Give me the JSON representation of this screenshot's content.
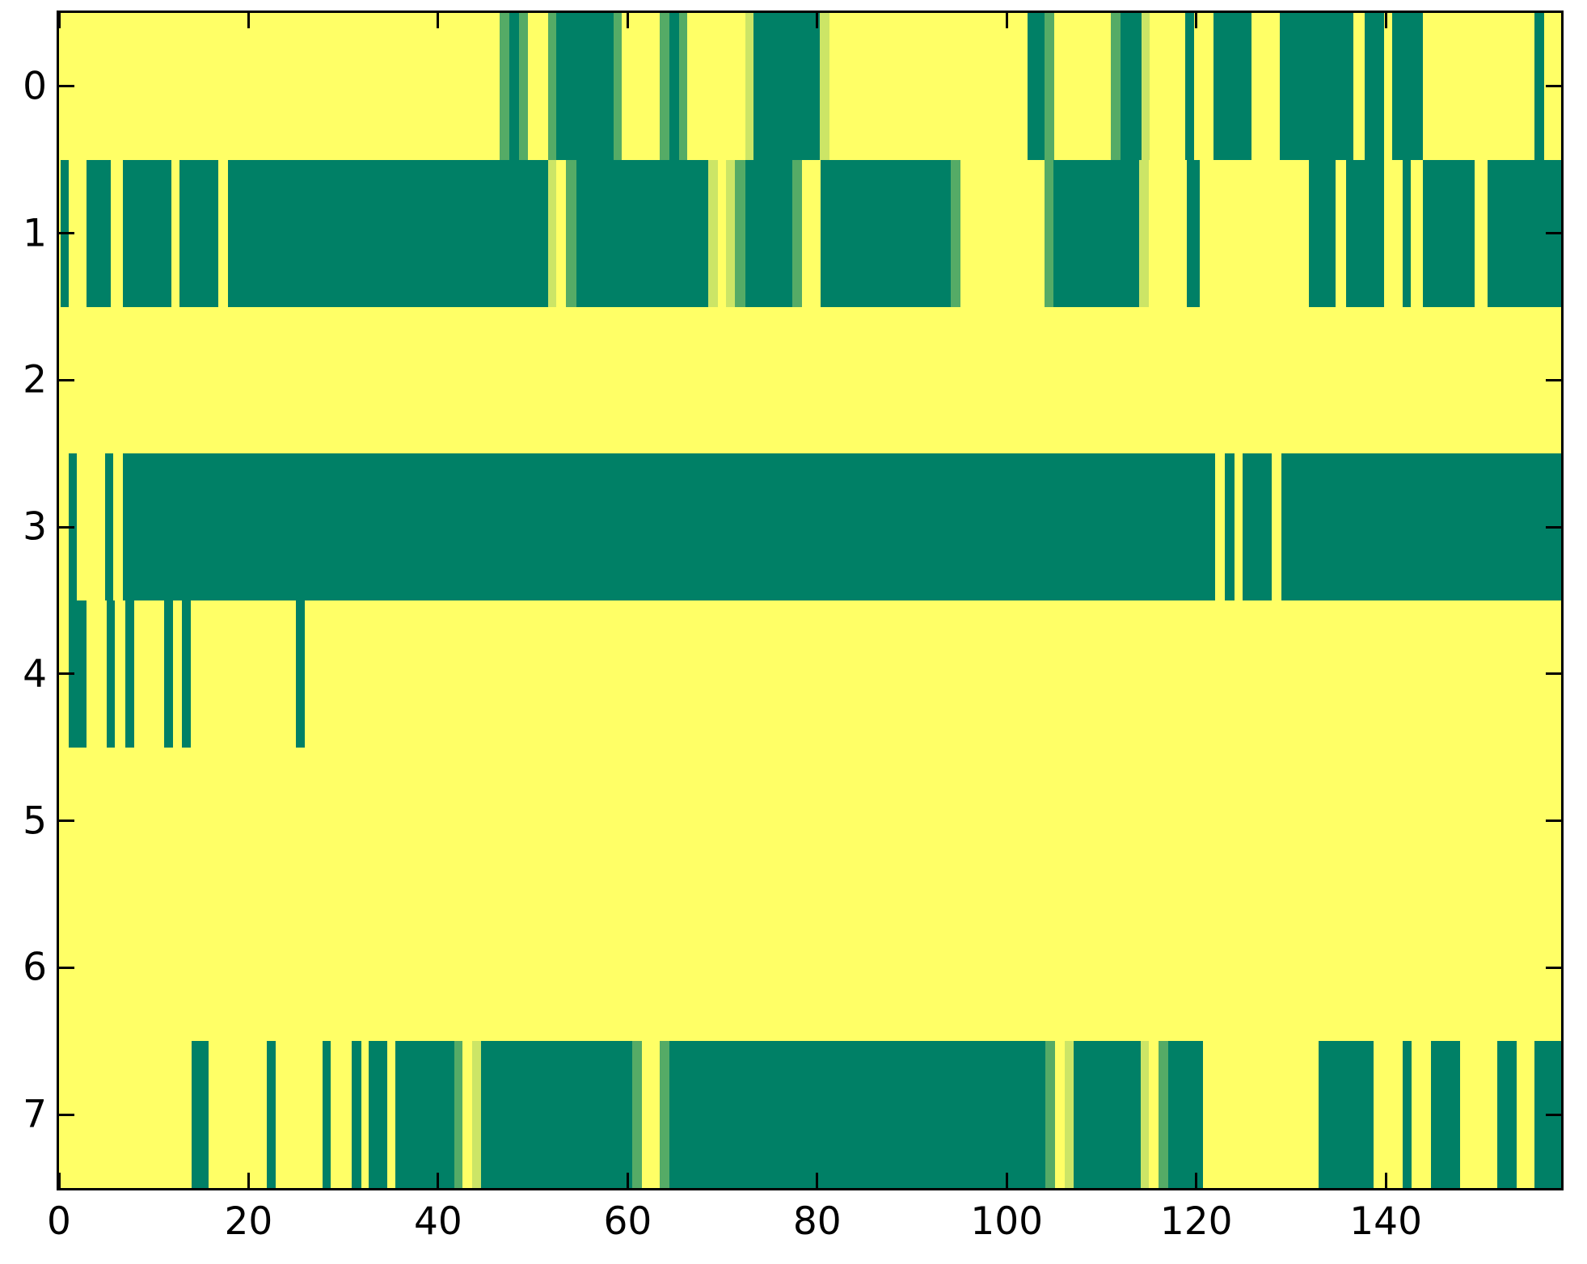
{
  "figure": {
    "kind": "matplotlib-binary-raster",
    "background": "#ffffff"
  },
  "chart_data": {
    "type": "heatmap",
    "title": "",
    "xlabel": "",
    "ylabel": "",
    "colormap": "summer",
    "legend": "none",
    "grid": false,
    "colors": {
      "background_low": "#ffff66",
      "d": "#008066",
      "m": "#55ab66",
      "p": "#cce566"
    },
    "x_axis": {
      "min": 0,
      "max": 158.5,
      "ticks": [
        0,
        20,
        40,
        60,
        80,
        100,
        120,
        140
      ]
    },
    "y_axis": {
      "ticks": [
        "0",
        "1",
        "2",
        "3",
        "4",
        "5",
        "6",
        "7"
      ]
    },
    "rows": [
      {
        "label": "0",
        "segments": [
          {
            "s": 46.5,
            "e": 47.5,
            "c": "m"
          },
          {
            "s": 47.5,
            "e": 48.5,
            "c": "d"
          },
          {
            "s": 48.5,
            "e": 49.5,
            "c": "m"
          },
          {
            "s": 51.6,
            "e": 52.5,
            "c": "m"
          },
          {
            "s": 52.5,
            "e": 58.5,
            "c": "d"
          },
          {
            "s": 58.5,
            "e": 59.4,
            "c": "m"
          },
          {
            "s": 63.4,
            "e": 64.4,
            "c": "m"
          },
          {
            "s": 64.4,
            "e": 65.4,
            "c": "d"
          },
          {
            "s": 65.4,
            "e": 66.3,
            "c": "m"
          },
          {
            "s": 72.4,
            "e": 73.3,
            "c": "p"
          },
          {
            "s": 73.3,
            "e": 80.3,
            "c": "d"
          },
          {
            "s": 80.3,
            "e": 81.3,
            "c": "p"
          },
          {
            "s": 102.2,
            "e": 104,
            "c": "d"
          },
          {
            "s": 104,
            "e": 105,
            "c": "m"
          },
          {
            "s": 111,
            "e": 112,
            "c": "m"
          },
          {
            "s": 112,
            "e": 114.2,
            "c": "d"
          },
          {
            "s": 114.2,
            "e": 115.1,
            "c": "p"
          },
          {
            "s": 118.8,
            "e": 119.8,
            "c": "d"
          },
          {
            "s": 121.8,
            "e": 125.8,
            "c": "d"
          },
          {
            "s": 128.8,
            "e": 136.6,
            "c": "d"
          },
          {
            "s": 137.8,
            "e": 139.8,
            "c": "d"
          },
          {
            "s": 140.7,
            "e": 143.9,
            "c": "d"
          },
          {
            "s": 155.7,
            "e": 156.7,
            "c": "d"
          }
        ]
      },
      {
        "label": "1",
        "segments": [
          {
            "s": 0.2,
            "e": 1,
            "c": "d"
          },
          {
            "s": 2.9,
            "e": 5.5,
            "c": "d"
          },
          {
            "s": 6.7,
            "e": 11.9,
            "c": "d"
          },
          {
            "s": 12.7,
            "e": 16.8,
            "c": "d"
          },
          {
            "s": 17.8,
            "e": 51.6,
            "c": "d"
          },
          {
            "s": 51.6,
            "e": 52.5,
            "c": "p"
          },
          {
            "s": 53.5,
            "e": 54.6,
            "c": "m"
          },
          {
            "s": 54.6,
            "e": 68.5,
            "c": "d"
          },
          {
            "s": 68.5,
            "e": 69.5,
            "c": "p"
          },
          {
            "s": 70.4,
            "e": 71.3,
            "c": "p"
          },
          {
            "s": 71.3,
            "e": 72.4,
            "c": "m"
          },
          {
            "s": 72.4,
            "e": 77.4,
            "c": "d"
          },
          {
            "s": 77.4,
            "e": 78.4,
            "c": "m"
          },
          {
            "s": 80.4,
            "e": 94.1,
            "c": "d"
          },
          {
            "s": 94.1,
            "e": 95.1,
            "c": "m"
          },
          {
            "s": 104,
            "e": 104.9,
            "c": "m"
          },
          {
            "s": 104.9,
            "e": 114,
            "c": "d"
          },
          {
            "s": 114,
            "e": 115,
            "c": "p"
          },
          {
            "s": 119,
            "e": 120.4,
            "c": "d"
          },
          {
            "s": 131.9,
            "e": 134.7,
            "c": "d"
          },
          {
            "s": 135.8,
            "e": 139.8,
            "c": "d"
          },
          {
            "s": 141.8,
            "e": 142.6,
            "c": "d"
          },
          {
            "s": 143.9,
            "e": 149.4,
            "c": "d"
          },
          {
            "s": 150.7,
            "e": 158.5,
            "c": "d"
          }
        ]
      },
      {
        "label": "2",
        "segments": []
      },
      {
        "label": "3",
        "segments": [
          {
            "s": 1,
            "e": 1.9,
            "c": "d"
          },
          {
            "s": 4.9,
            "e": 5.7,
            "c": "d"
          },
          {
            "s": 6.7,
            "e": 122,
            "c": "d"
          },
          {
            "s": 123,
            "e": 124,
            "c": "d"
          },
          {
            "s": 124.9,
            "e": 128,
            "c": "d"
          },
          {
            "s": 129,
            "e": 158.5,
            "c": "d"
          }
        ]
      },
      {
        "label": "4",
        "segments": [
          {
            "s": 1,
            "e": 2.9,
            "c": "d"
          },
          {
            "s": 5,
            "e": 5.9,
            "c": "d"
          },
          {
            "s": 7,
            "e": 7.9,
            "c": "d"
          },
          {
            "s": 11.1,
            "e": 12,
            "c": "d"
          },
          {
            "s": 13,
            "e": 13.9,
            "c": "d"
          },
          {
            "s": 25,
            "e": 25.9,
            "c": "d"
          }
        ]
      },
      {
        "label": "5",
        "segments": []
      },
      {
        "label": "6",
        "segments": []
      },
      {
        "label": "7",
        "segments": [
          {
            "s": 14,
            "e": 15.8,
            "c": "d"
          },
          {
            "s": 21.9,
            "e": 22.9,
            "c": "d"
          },
          {
            "s": 27.8,
            "e": 28.7,
            "c": "d"
          },
          {
            "s": 30.9,
            "e": 31.9,
            "c": "d"
          },
          {
            "s": 32.7,
            "e": 34.6,
            "c": "d"
          },
          {
            "s": 35.5,
            "e": 41.7,
            "c": "d"
          },
          {
            "s": 41.7,
            "e": 42.6,
            "c": "m"
          },
          {
            "s": 43.6,
            "e": 44.5,
            "c": "p"
          },
          {
            "s": 44.5,
            "e": 60.5,
            "c": "d"
          },
          {
            "s": 60.5,
            "e": 61.5,
            "c": "m"
          },
          {
            "s": 63.4,
            "e": 64.4,
            "c": "m"
          },
          {
            "s": 64.4,
            "e": 104.1,
            "c": "d"
          },
          {
            "s": 104.1,
            "e": 105.1,
            "c": "m"
          },
          {
            "s": 106.1,
            "e": 107.1,
            "c": "p"
          },
          {
            "s": 107.1,
            "e": 114.1,
            "c": "d"
          },
          {
            "s": 114.1,
            "e": 115,
            "c": "p"
          },
          {
            "s": 116,
            "e": 117,
            "c": "m"
          },
          {
            "s": 117,
            "e": 120.7,
            "c": "d"
          },
          {
            "s": 132.9,
            "e": 138.7,
            "c": "d"
          },
          {
            "s": 141.8,
            "e": 142.7,
            "c": "d"
          },
          {
            "s": 144.8,
            "e": 147.8,
            "c": "d"
          },
          {
            "s": 151.8,
            "e": 153.8,
            "c": "d"
          },
          {
            "s": 155.7,
            "e": 158.5,
            "c": "d"
          }
        ]
      }
    ]
  }
}
